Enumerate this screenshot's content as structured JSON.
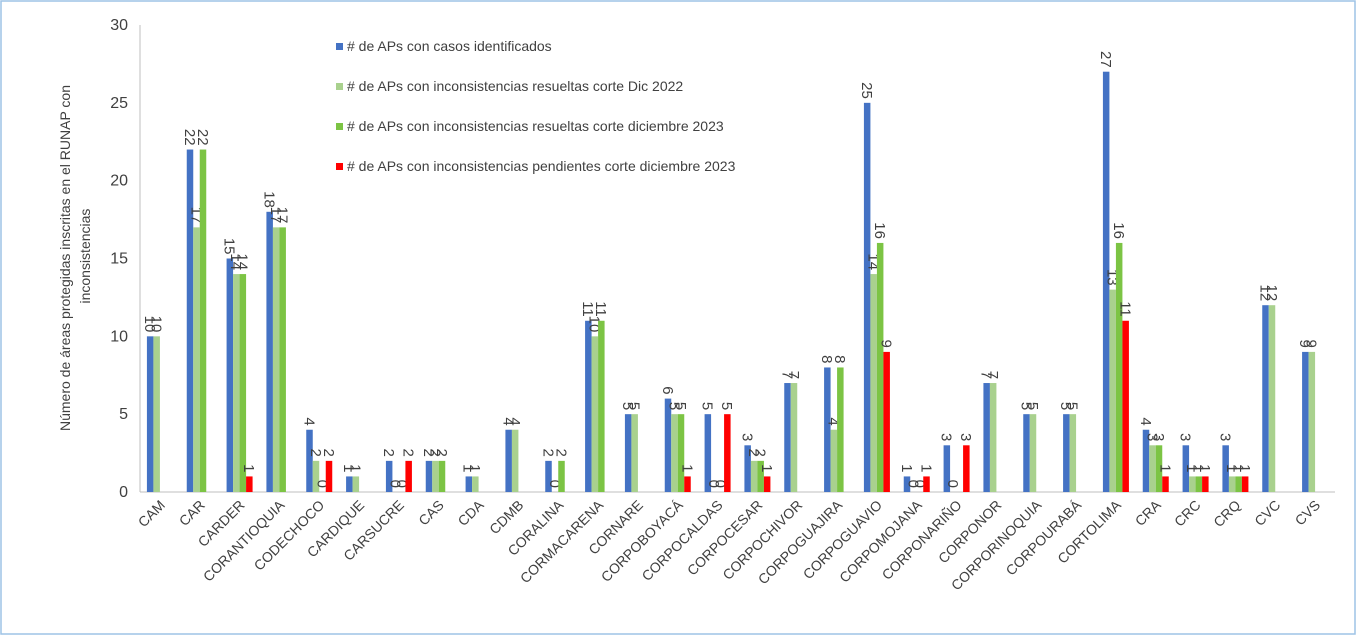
{
  "chart_data": {
    "type": "bar",
    "y_label": "Número de áreas protegidas inscritas en el RUNAP con inconsistencias",
    "categories": [
      "CAM",
      "CAR",
      "CARDER",
      "CORANTIOQUIA",
      "CODECHOCO",
      "CARDIQUE",
      "CARSUCRE",
      "CAS",
      "CDA",
      "CDMB",
      "CORALINA",
      "CORMACARENA",
      "CORNARE",
      "CORPOBOYACÁ",
      "CORPOCALDAS",
      "CORPOCESAR",
      "CORPOCHIVOR",
      "CORPOGUAJIRA",
      "CORPOGUAVIO",
      "CORPOMOJANA",
      "CORPONARIÑO",
      "CORPONOR",
      "CORPORINOQUIA",
      "CORPOURABÁ",
      "CORTOLIMA",
      "CRA",
      "CRC",
      "CRQ",
      "CVC",
      "CVS"
    ],
    "series": [
      {
        "name": "# de  APs con casos identificados",
        "color": "#4472c4",
        "values": [
          10,
          22,
          15,
          18,
          4,
          1,
          2,
          2,
          1,
          4,
          2,
          11,
          5,
          6,
          5,
          3,
          7,
          8,
          25,
          1,
          3,
          7,
          5,
          5,
          27,
          4,
          3,
          3,
          12,
          9
        ]
      },
      {
        "name": "# de APs con inconsistencias resueltas corte Dic 2022",
        "color": "#a9d18e",
        "values": [
          10,
          17,
          14,
          17,
          2,
          1,
          0,
          2,
          1,
          4,
          0,
          10,
          5,
          5,
          0,
          2,
          7,
          4,
          14,
          0,
          0,
          7,
          5,
          5,
          13,
          3,
          1,
          1,
          12,
          9
        ]
      },
      {
        "name": "# de APs con inconsistencias resueltas corte diciembre 2023",
        "color": "#7cc444",
        "values": [
          null,
          22,
          14,
          17,
          0,
          null,
          0,
          2,
          null,
          null,
          2,
          11,
          null,
          5,
          0,
          2,
          null,
          8,
          16,
          0,
          null,
          null,
          null,
          null,
          16,
          3,
          1,
          1,
          null,
          null
        ]
      },
      {
        "name": "# de APs con inconsistencias pendientes corte diciembre 2023",
        "color": "#ff0000",
        "values": [
          null,
          null,
          1,
          null,
          2,
          null,
          2,
          null,
          null,
          null,
          null,
          null,
          null,
          1,
          5,
          1,
          null,
          null,
          9,
          1,
          3,
          null,
          null,
          null,
          11,
          1,
          1,
          1,
          null,
          null
        ]
      }
    ],
    "ylim": [
      0,
      30
    ],
    "yticks": [
      0,
      5,
      10,
      15,
      20,
      25,
      30
    ],
    "grid": false
  }
}
